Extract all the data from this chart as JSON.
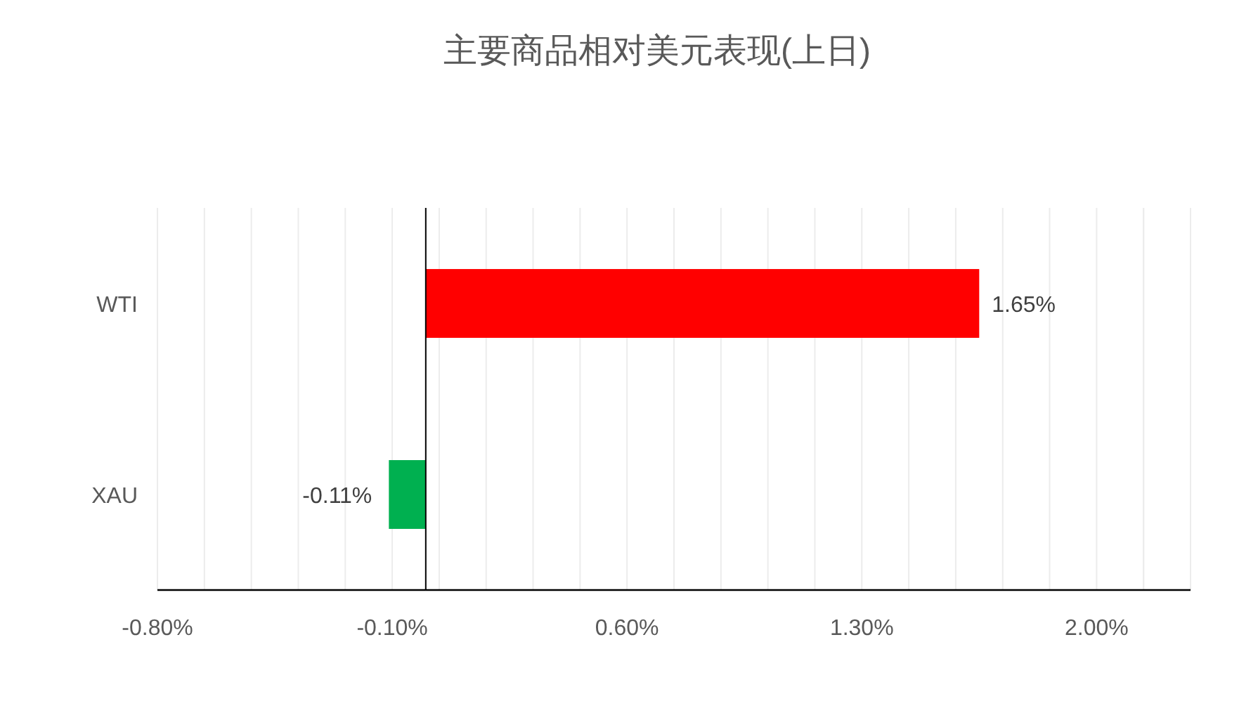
{
  "chart_data": {
    "type": "bar",
    "orientation": "horizontal",
    "title": "主要商品相对美元表现(上日)",
    "categories": [
      "WTI",
      "XAU"
    ],
    "values": [
      1.65,
      -0.11
    ],
    "colors": [
      "#ff0000",
      "#00b050"
    ],
    "value_labels": [
      "1.65%",
      "-0.11%"
    ],
    "xlim": [
      -0.8,
      2.28
    ],
    "xticks": [
      {
        "value": -0.8,
        "label": "-0.80%"
      },
      {
        "value": -0.1,
        "label": "-0.10%"
      },
      {
        "value": 0.6,
        "label": "0.60%"
      },
      {
        "value": 1.3,
        "label": "1.30%"
      },
      {
        "value": 2.0,
        "label": "2.00%"
      }
    ],
    "grid": "x"
  }
}
